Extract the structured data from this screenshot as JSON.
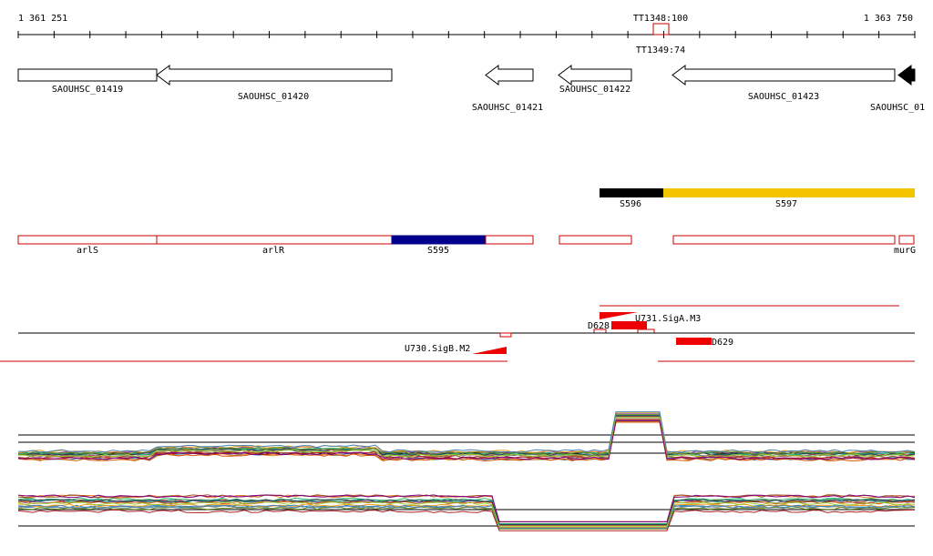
{
  "ruler": {
    "start": "1 361 251",
    "end": "1 363 750"
  },
  "terminators": {
    "top": "TT1348:100",
    "bottom": "TT1349:74"
  },
  "genes": [
    {
      "label": "SAOUHSC_01419"
    },
    {
      "label": "SAOUHSC_01420"
    },
    {
      "label": "SAOUHSC_01421"
    },
    {
      "label": "SAOUHSC_01422"
    },
    {
      "label": "SAOUHSC_01423"
    },
    {
      "label": "SAOUHSC_01"
    }
  ],
  "segments": [
    {
      "label": "S596"
    },
    {
      "label": "S597"
    }
  ],
  "regions": [
    {
      "label": "arlS"
    },
    {
      "label": "arlR"
    },
    {
      "label": "S595"
    },
    {
      "label": "murG"
    }
  ],
  "features": [
    {
      "label": "U731.SigA.M3"
    },
    {
      "label": "D628"
    },
    {
      "label": "D629"
    },
    {
      "label": "U730.SigB.M2"
    }
  ]
}
